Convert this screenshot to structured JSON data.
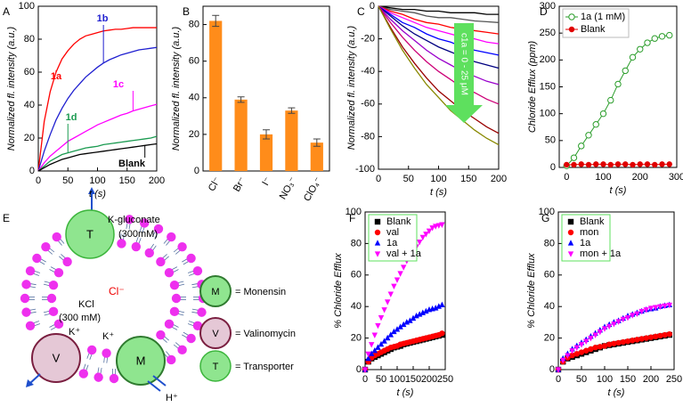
{
  "chart_data": [
    {
      "type": "line",
      "panel_label": "A",
      "xlabel": "t (s)",
      "ylabel": "Normalized fl. intensity (a.u.)",
      "xlim": [
        0,
        200
      ],
      "xticks": [
        0,
        50,
        100,
        150,
        200
      ],
      "ylim": [
        0,
        100
      ],
      "yticks": [
        0,
        20,
        40,
        60,
        80,
        100
      ],
      "x": [
        0,
        10,
        20,
        30,
        40,
        50,
        60,
        70,
        80,
        90,
        100,
        110,
        120,
        130,
        140,
        150,
        160,
        170,
        180,
        190,
        200
      ],
      "series": [
        {
          "name": "1a",
          "color": "#ff0000",
          "values": [
            0,
            30,
            48,
            60,
            68,
            73,
            77,
            80,
            82,
            83,
            84,
            85,
            85.5,
            86,
            86,
            86.5,
            87,
            87,
            87,
            87,
            87
          ]
        },
        {
          "name": "1b",
          "color": "#1f1fd0",
          "values": [
            0,
            12,
            22,
            31,
            38,
            44,
            49,
            53,
            57,
            60,
            63,
            65.5,
            67.5,
            69,
            70.5,
            71.5,
            72.5,
            73.5,
            74,
            74.5,
            75
          ]
        },
        {
          "name": "1c",
          "color": "#ff00ff",
          "values": [
            0,
            5,
            9,
            12,
            15,
            18,
            20,
            22,
            24,
            26,
            28,
            29.5,
            31,
            32.5,
            34,
            35,
            36.5,
            37.5,
            38.5,
            39.5,
            40.5
          ]
        },
        {
          "name": "1d",
          "color": "#1a9a50",
          "values": [
            0,
            3,
            6,
            8,
            10,
            11,
            12,
            13,
            14,
            14.5,
            15,
            16,
            16.5,
            17,
            17.5,
            18,
            18.5,
            19,
            19.5,
            20,
            21
          ]
        },
        {
          "name": "Blank",
          "color": "#000000",
          "values": [
            0,
            2,
            4,
            5.5,
            7,
            8,
            9,
            10,
            10.5,
            11,
            11.5,
            12,
            12.5,
            13,
            13.5,
            14,
            14.5,
            15,
            15.5,
            16,
            16.5
          ]
        }
      ]
    },
    {
      "type": "bar",
      "panel_label": "B",
      "ylabel": "Normalized fl. intensity (a.u.)",
      "categories": [
        "Cl⁻",
        "Br⁻",
        "I⁻",
        "NO₃⁻",
        "ClO₄⁻"
      ],
      "values": [
        82,
        39,
        20,
        33,
        15.5
      ],
      "errors": [
        3,
        1.5,
        2.5,
        1.5,
        2
      ],
      "color": "#ff8c1a",
      "ylim": [
        0,
        90
      ],
      "yticks": [
        0,
        20,
        40,
        60,
        80
      ]
    },
    {
      "type": "line",
      "panel_label": "C",
      "xlabel": "t (s)",
      "ylabel": "Normalized fl. intensity (a.u.)",
      "annotation": "c1a = 0 - 25 μM",
      "xlim": [
        0,
        200
      ],
      "xticks": [
        0,
        50,
        100,
        150,
        200
      ],
      "ylim": [
        -100,
        0
      ],
      "yticks": [
        -100,
        -80,
        -60,
        -40,
        -20,
        0
      ],
      "x": [
        0,
        20,
        40,
        60,
        80,
        100,
        120,
        140,
        160,
        180,
        200
      ],
      "series": [
        {
          "color": "#000000",
          "values": [
            0,
            -1,
            -2,
            -2,
            -3,
            -3,
            -4,
            -4,
            -4,
            -5,
            -5
          ]
        },
        {
          "color": "#555555",
          "values": [
            0,
            -2,
            -3,
            -4,
            -6,
            -7,
            -7,
            -8,
            -9,
            -9.5,
            -10
          ]
        },
        {
          "color": "#ff0000",
          "values": [
            0,
            -3,
            -5,
            -8,
            -10,
            -11,
            -13,
            -14,
            -15,
            -16,
            -17
          ]
        },
        {
          "color": "#ff00ff",
          "values": [
            0,
            -4,
            -7,
            -10,
            -13,
            -15,
            -17,
            -19,
            -20,
            -22,
            -23
          ]
        },
        {
          "color": "#0000ff",
          "values": [
            0,
            -5,
            -10,
            -13,
            -17,
            -20,
            -22,
            -25,
            -27,
            -28.5,
            -30
          ]
        },
        {
          "color": "#000080",
          "values": [
            0,
            -6,
            -12,
            -17,
            -21,
            -25,
            -28,
            -31,
            -34,
            -36,
            -38
          ]
        },
        {
          "color": "#9900cc",
          "values": [
            0,
            -8,
            -15,
            -21,
            -27,
            -32,
            -36,
            -40,
            -43,
            -46,
            -48
          ]
        },
        {
          "color": "#cc0077",
          "values": [
            0,
            -10,
            -19,
            -27,
            -34,
            -40,
            -45,
            -50,
            -53,
            -57,
            -60
          ]
        },
        {
          "color": "#990000",
          "values": [
            0,
            -13,
            -25,
            -35,
            -44,
            -52,
            -58,
            -64,
            -69,
            -74,
            -78
          ]
        },
        {
          "color": "#888800",
          "values": [
            0,
            -14,
            -27,
            -38,
            -48,
            -56,
            -64,
            -70,
            -76,
            -81,
            -85
          ]
        }
      ]
    },
    {
      "type": "line",
      "panel_label": "D",
      "xlabel": "t (s)",
      "ylabel": "Chloride Efflux (ppm)",
      "legend": "top-left",
      "xlim": [
        -20,
        300
      ],
      "xticks": [
        0,
        100,
        200,
        300
      ],
      "ylim": [
        0,
        300
      ],
      "yticks": [
        0,
        50,
        100,
        150,
        200,
        250,
        300
      ],
      "x": [
        0,
        20,
        40,
        60,
        80,
        100,
        120,
        140,
        160,
        180,
        200,
        220,
        240,
        260,
        280
      ],
      "series": [
        {
          "name": "1a (1 mM)",
          "color": "#2a9d2a",
          "marker": "circle-open",
          "values": [
            3,
            18,
            40,
            60,
            80,
            100,
            125,
            155,
            180,
            205,
            220,
            232,
            240,
            244,
            246
          ]
        },
        {
          "name": "Blank",
          "color": "#e00000",
          "marker": "circle",
          "values": [
            5,
            5,
            6,
            5,
            6,
            6,
            5,
            6,
            6,
            5,
            6,
            6,
            5,
            6,
            6
          ]
        }
      ]
    },
    {
      "type": "scatter",
      "panel_label": "F",
      "xlabel": "t (s)",
      "ylabel": "% Chloride Efflux",
      "legend": "top-left",
      "xlim": [
        0,
        250
      ],
      "xticks": [
        0,
        50,
        100,
        150,
        200,
        250
      ],
      "ylim": [
        0,
        100
      ],
      "yticks": [
        0,
        20,
        40,
        60,
        80,
        100
      ],
      "x": [
        0,
        10,
        20,
        30,
        40,
        50,
        60,
        70,
        80,
        90,
        100,
        110,
        120,
        130,
        140,
        150,
        160,
        170,
        180,
        190,
        200,
        210,
        220,
        230,
        240
      ],
      "series": [
        {
          "name": "Blank",
          "color": "#000000",
          "marker": "square",
          "values": [
            0,
            5,
            7,
            8,
            9,
            10,
            11,
            12,
            13,
            14,
            14.5,
            15,
            16,
            16.5,
            17,
            17.5,
            18,
            18.5,
            19,
            19.5,
            20,
            20.5,
            21,
            21.5,
            22
          ]
        },
        {
          "name": "val",
          "color": "#ff0000",
          "marker": "circle",
          "values": [
            0,
            5,
            7.5,
            9,
            10,
            11,
            12,
            13,
            14,
            14.5,
            15,
            16,
            16.5,
            17,
            17.5,
            18,
            18.5,
            19,
            19.5,
            20,
            20.5,
            21,
            21.5,
            22,
            23
          ]
        },
        {
          "name": "1a",
          "color": "#0000ff",
          "marker": "triangle-up",
          "values": [
            0,
            7,
            10,
            12,
            14,
            16,
            18,
            20,
            22,
            24,
            25.5,
            27,
            28.5,
            30,
            31,
            32.5,
            34,
            35,
            36,
            37,
            38,
            38.5,
            39,
            40,
            41
          ]
        },
        {
          "name": "val + 1a",
          "color": "#ff00ff",
          "marker": "triangle-down",
          "values": [
            0,
            10,
            16,
            22,
            28,
            33,
            38,
            43,
            48,
            53,
            57,
            61,
            65,
            69,
            72,
            75,
            78,
            81,
            84,
            86,
            88,
            90,
            91,
            91.5,
            92
          ]
        }
      ]
    },
    {
      "type": "scatter",
      "panel_label": "G",
      "xlabel": "t (s)",
      "ylabel": "% Chloride Efflux",
      "legend": "top-left",
      "xlim": [
        0,
        250
      ],
      "xticks": [
        0,
        50,
        100,
        150,
        200,
        250
      ],
      "ylim": [
        0,
        100
      ],
      "yticks": [
        0,
        20,
        40,
        60,
        80,
        100
      ],
      "x": [
        0,
        10,
        20,
        30,
        40,
        50,
        60,
        70,
        80,
        90,
        100,
        110,
        120,
        130,
        140,
        150,
        160,
        170,
        180,
        190,
        200,
        210,
        220,
        230,
        240
      ],
      "series": [
        {
          "name": "Blank",
          "color": "#000000",
          "marker": "square",
          "values": [
            0,
            5,
            7,
            8,
            9,
            10,
            11,
            12,
            13,
            14,
            15,
            15.5,
            16,
            16.5,
            17,
            17.5,
            18,
            18.5,
            19,
            19.5,
            20,
            20.5,
            21,
            21.5,
            22
          ]
        },
        {
          "name": "mon",
          "color": "#ff0000",
          "marker": "circle",
          "values": [
            0,
            5,
            7.5,
            9,
            10,
            11,
            12,
            13,
            14,
            14.5,
            15,
            16,
            16.5,
            17,
            17.5,
            18,
            18.5,
            19,
            19.5,
            20,
            20.5,
            21,
            21.5,
            22,
            22.5
          ]
        },
        {
          "name": "1a",
          "color": "#0000ff",
          "marker": "triangle-up",
          "values": [
            0,
            7,
            10,
            13,
            15,
            17,
            19,
            21,
            23,
            25,
            27,
            28.5,
            30,
            31,
            32.5,
            34,
            35,
            36,
            37,
            38,
            38.5,
            39,
            40,
            40.5,
            41
          ]
        },
        {
          "name": "mon + 1a",
          "color": "#ff00ff",
          "marker": "triangle-down",
          "values": [
            0,
            6,
            9,
            12,
            14,
            16,
            18,
            20,
            22,
            24,
            26,
            27.5,
            29,
            30.5,
            32,
            33,
            34.5,
            35.5,
            37,
            38,
            39,
            39.5,
            40,
            40.5,
            41
          ]
        }
      ]
    }
  ],
  "diagram": {
    "panel_label": "E",
    "outside_salt": "K-gluconate",
    "outside_conc": "(300mM)",
    "transporter_symbol": "T",
    "chloride": "Cl⁻",
    "inside_salt": "KCl",
    "inside_conc": "(300 mM)",
    "k_ion_left": "K⁺",
    "k_ion_right": "K⁺",
    "valinomycin_symbol": "V",
    "monensin_symbol": "M",
    "proton": "H⁺",
    "key": [
      {
        "symbol": "M",
        "text": "= Monensin"
      },
      {
        "symbol": "V",
        "text": "= Valinomycin"
      },
      {
        "symbol": "T",
        "text": "= Transporter"
      }
    ]
  }
}
